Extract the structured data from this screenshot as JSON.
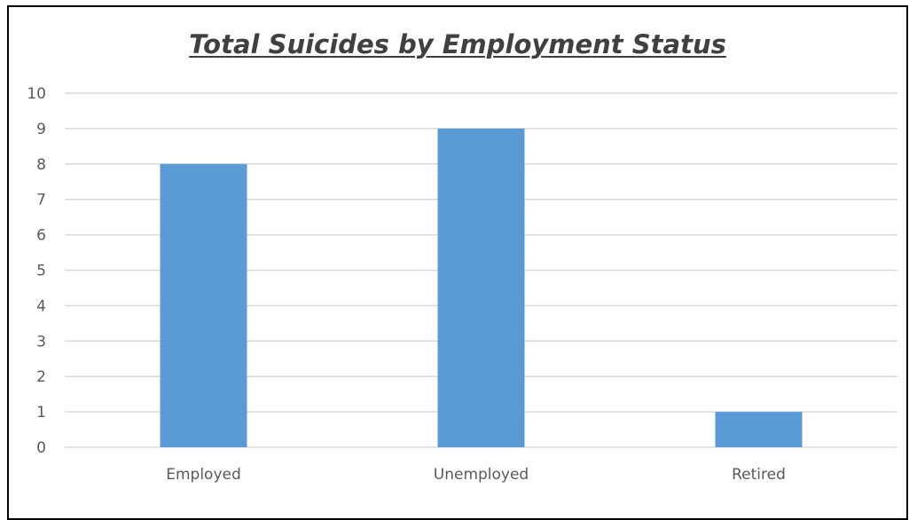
{
  "chart_data": {
    "type": "bar",
    "title": "Total Suicides by Employment Status",
    "xlabel": "",
    "ylabel": "",
    "categories": [
      "Employed",
      "Unemployed",
      "Retired"
    ],
    "values": [
      8,
      9,
      1
    ],
    "ylim": [
      0,
      10
    ],
    "yticks": [
      "0",
      "1",
      "2",
      "3",
      "4",
      "5",
      "6",
      "7",
      "8",
      "9",
      "10"
    ],
    "grid": true,
    "legend": "none",
    "colors": {
      "bar": "#5B9BD5",
      "grid": "#D9D9D9",
      "text": "#595959",
      "title": "#404040",
      "border": "#000000"
    }
  }
}
